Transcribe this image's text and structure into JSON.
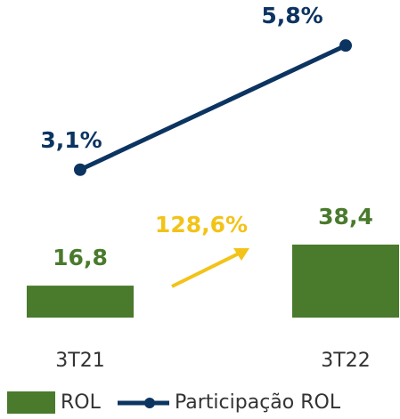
{
  "chart_data": {
    "type": "bar_line",
    "categories": [
      "3T21",
      "3T22"
    ],
    "series": [
      {
        "name": "ROL",
        "type": "bar",
        "color": "#4a7a2c",
        "values": [
          16.8,
          38.4
        ],
        "value_labels": [
          "16,8",
          "38,4"
        ]
      },
      {
        "name": "Participação ROL",
        "type": "line",
        "axis": "y2",
        "color": "#0c3461",
        "values": [
          3.1,
          5.8
        ],
        "value_labels": [
          "3,1%",
          "5,8%"
        ]
      }
    ],
    "ylim": [
      0,
      160
    ],
    "y2lim": [
      0,
      6.5
    ],
    "annotations": [
      {
        "text": "128,6%",
        "color": "#f2c318"
      }
    ],
    "legend": "bottom"
  }
}
